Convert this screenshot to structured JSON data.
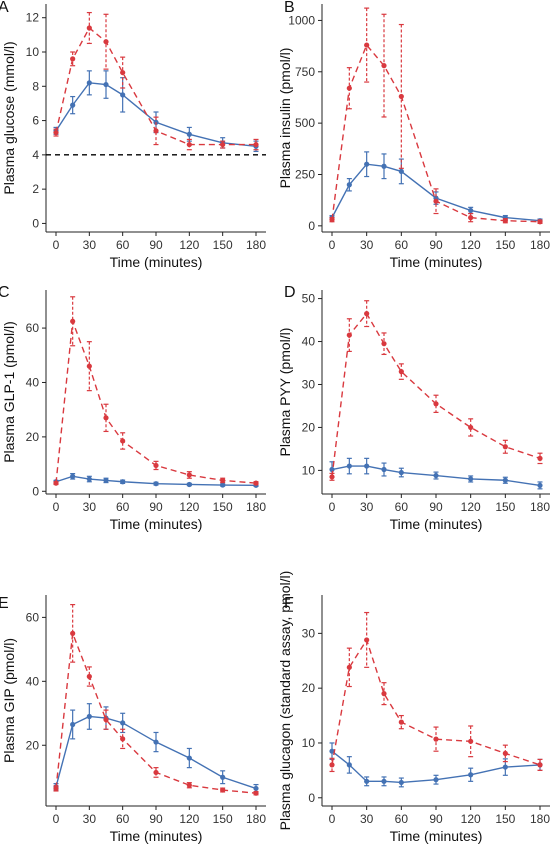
{
  "figure": {
    "colors": {
      "red": "#d9393f",
      "blue": "#4472b4",
      "axis": "#222222"
    }
  },
  "chart_data": [
    {
      "type": "line",
      "panel": "A",
      "xlabel": "Time (minutes)",
      "ylabel": "Plasma glucose (mmol/l)",
      "x": [
        0,
        15,
        30,
        45,
        60,
        90,
        120,
        150,
        180
      ],
      "xticks": [
        0,
        30,
        60,
        90,
        120,
        150,
        180
      ],
      "ylim": [
        -0.5,
        12.8
      ],
      "yticks": [
        0,
        2,
        4,
        6,
        8,
        10,
        12
      ],
      "reference_line": {
        "y": 4,
        "style": "dashed",
        "color": "#000000"
      },
      "series": [
        {
          "color": "#d9393f",
          "style": "dashed",
          "values": [
            5.3,
            9.6,
            11.4,
            10.6,
            8.8,
            5.4,
            4.6,
            4.6,
            4.6
          ],
          "errors": [
            0.2,
            0.4,
            0.9,
            1.6,
            0.9,
            0.8,
            0.3,
            0.2,
            0.3
          ]
        },
        {
          "color": "#4472b4",
          "style": "solid",
          "values": [
            5.4,
            6.9,
            8.2,
            8.1,
            7.5,
            5.9,
            5.2,
            4.7,
            4.5
          ],
          "errors": [
            0.2,
            0.5,
            0.7,
            0.8,
            1.0,
            0.6,
            0.4,
            0.3,
            0.3
          ]
        }
      ]
    },
    {
      "type": "line",
      "panel": "B",
      "xlabel": "Time (minutes)",
      "ylabel": "Plasma insulin (pmol/l)",
      "x": [
        0,
        15,
        30,
        45,
        60,
        90,
        120,
        150,
        180
      ],
      "xticks": [
        0,
        30,
        60,
        90,
        120,
        150,
        180
      ],
      "ylim": [
        -30,
        1080
      ],
      "yticks": [
        0,
        250,
        500,
        750,
        1000
      ],
      "series": [
        {
          "color": "#d9393f",
          "style": "dashed",
          "values": [
            30,
            670,
            880,
            780,
            630,
            120,
            40,
            25,
            20
          ],
          "errors": [
            10,
            100,
            180,
            250,
            350,
            60,
            20,
            10,
            8
          ]
        },
        {
          "color": "#4472b4",
          "style": "solid",
          "values": [
            40,
            200,
            300,
            290,
            265,
            135,
            75,
            40,
            25
          ],
          "errors": [
            10,
            30,
            60,
            60,
            60,
            30,
            15,
            10,
            8
          ]
        }
      ]
    },
    {
      "type": "line",
      "panel": "C",
      "xlabel": "Time (minutes)",
      "ylabel": "Plasma GLP-1 (pmol/l)",
      "x": [
        0,
        15,
        30,
        45,
        60,
        90,
        120,
        150,
        180
      ],
      "xticks": [
        0,
        30,
        60,
        90,
        120,
        150,
        180
      ],
      "ylim": [
        -1,
        74
      ],
      "yticks": [
        0,
        20,
        40,
        60
      ],
      "series": [
        {
          "color": "#d9393f",
          "style": "dashed",
          "values": [
            3,
            62.5,
            46,
            27,
            18.5,
            9.5,
            6,
            4,
            3
          ],
          "errors": [
            0.5,
            9,
            9,
            5,
            3,
            1.5,
            1.2,
            0.8,
            0.5
          ]
        },
        {
          "color": "#4472b4",
          "style": "solid",
          "values": [
            3.5,
            5.5,
            4.5,
            4,
            3.5,
            2.8,
            2.5,
            2.3,
            2.2
          ],
          "errors": [
            0.5,
            1,
            1,
            0.8,
            0.6,
            0.5,
            0.4,
            0.4,
            0.4
          ]
        }
      ]
    },
    {
      "type": "line",
      "panel": "D",
      "xlabel": "Time (minutes)",
      "ylabel": "Plasma PYY (pmol/l)",
      "x": [
        0,
        15,
        30,
        45,
        60,
        90,
        120,
        150,
        180
      ],
      "xticks": [
        0,
        30,
        60,
        90,
        120,
        150,
        180
      ],
      "ylim": [
        4.5,
        52
      ],
      "yticks": [
        10,
        20,
        30,
        40,
        50
      ],
      "series": [
        {
          "color": "#d9393f",
          "style": "dashed",
          "values": [
            8.5,
            41.5,
            46.5,
            39.5,
            33,
            25.5,
            20,
            15.5,
            12.8
          ],
          "errors": [
            0.8,
            3.8,
            3,
            2.5,
            1.8,
            2,
            2,
            1.5,
            1.2
          ]
        },
        {
          "color": "#4472b4",
          "style": "solid",
          "values": [
            10.2,
            11,
            11,
            10.2,
            9.5,
            8.8,
            8,
            7.7,
            6.5
          ],
          "errors": [
            1.8,
            1.8,
            1.8,
            1.5,
            1,
            0.8,
            0.7,
            0.7,
            0.8
          ]
        }
      ]
    },
    {
      "type": "line",
      "panel": "E",
      "xlabel": "Time (minutes)",
      "ylabel": "Plasma GIP (pmol/l)",
      "x": [
        0,
        15,
        30,
        45,
        60,
        90,
        120,
        150,
        180
      ],
      "xticks": [
        0,
        30,
        60,
        90,
        120,
        150,
        180
      ],
      "ylim": [
        1,
        67
      ],
      "yticks": [
        20,
        40,
        60
      ],
      "series": [
        {
          "color": "#d9393f",
          "style": "dashed",
          "values": [
            6.5,
            55,
            41.5,
            28,
            22,
            11.5,
            7.5,
            6,
            5
          ],
          "errors": [
            0.8,
            9,
            3,
            3,
            3,
            1.5,
            0.8,
            0.6,
            0.5
          ]
        },
        {
          "color": "#4472b4",
          "style": "solid",
          "values": [
            7,
            26.5,
            29,
            28.5,
            27,
            21,
            16,
            10,
            6.5
          ],
          "errors": [
            1,
            4.5,
            4,
            3.5,
            3,
            3,
            3,
            2,
            1.2
          ]
        }
      ]
    },
    {
      "type": "line",
      "panel": "F",
      "xlabel": "Time (minutes)",
      "ylabel": "Plasma glucagon (standard assay, pmol/l)",
      "x": [
        0,
        15,
        30,
        45,
        60,
        90,
        120,
        150,
        180
      ],
      "xticks": [
        0,
        30,
        60,
        90,
        120,
        150,
        180
      ],
      "ylim": [
        -1.5,
        37
      ],
      "yticks": [
        0,
        10,
        20,
        30
      ],
      "series": [
        {
          "color": "#d9393f",
          "style": "dashed",
          "values": [
            6,
            23.8,
            28.8,
            19,
            13.8,
            10.7,
            10.3,
            8.1,
            6
          ],
          "errors": [
            1.2,
            3.5,
            5,
            2,
            1.2,
            2.2,
            2.8,
            1.5,
            1
          ]
        },
        {
          "color": "#4472b4",
          "style": "solid",
          "values": [
            8.5,
            6,
            3,
            3,
            2.8,
            3.3,
            4.2,
            5.6,
            6
          ],
          "errors": [
            1.5,
            1.5,
            0.8,
            0.8,
            0.8,
            0.8,
            1.2,
            1.5,
            1
          ]
        }
      ]
    }
  ]
}
